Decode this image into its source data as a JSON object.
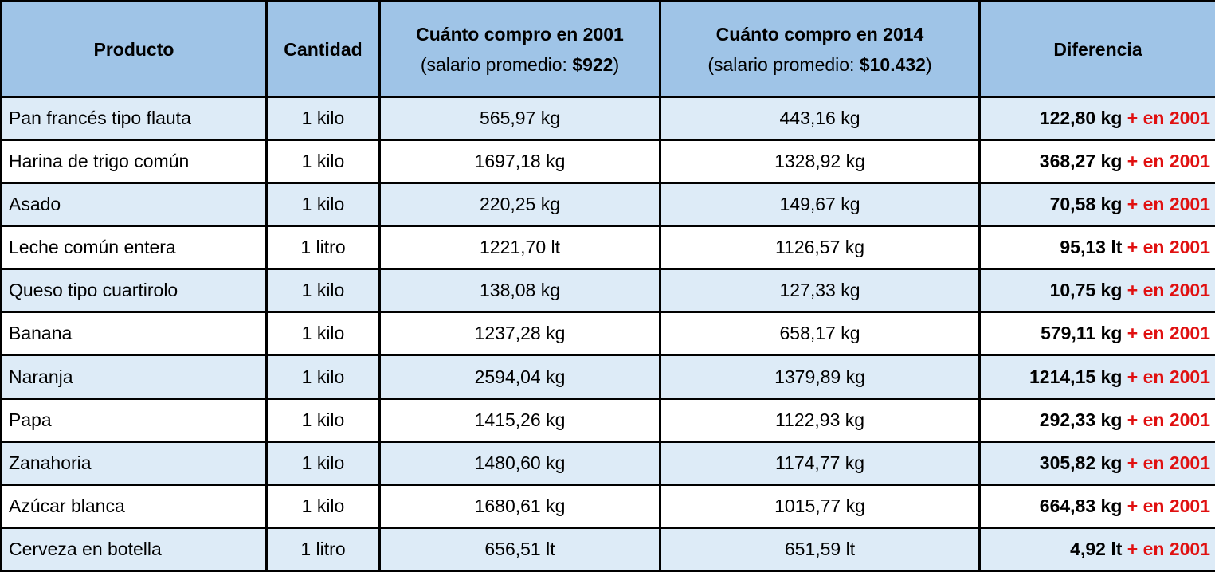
{
  "header": [
    {
      "title": "Producto"
    },
    {
      "title": "Cantidad"
    },
    {
      "title": "Cuánto compro en 2001",
      "note_prefix": "(salario promedio: ",
      "note_value": "$922",
      "note_suffix": ")"
    },
    {
      "title": "Cuánto compro en 2014",
      "note_prefix": "(salario promedio: ",
      "note_value": "$10.432",
      "note_suffix": ")"
    },
    {
      "title": "Diferencia"
    }
  ],
  "rows": [
    [
      "Pan francés tipo flauta",
      "1 kilo",
      "565,97 kg",
      "443,16 kg",
      {
        "amount": "122,80 kg",
        "note": "+ en 2001"
      }
    ],
    [
      "Harina de trigo común",
      "1 kilo",
      "1697,18 kg",
      "1328,92 kg",
      {
        "amount": "368,27 kg",
        "note": "+ en 2001"
      }
    ],
    [
      "Asado",
      "1 kilo",
      "220,25 kg",
      "149,67 kg",
      {
        "amount": "70,58 kg",
        "note": "+ en 2001"
      }
    ],
    [
      "Leche común entera",
      "1 litro",
      "1221,70 lt",
      "1126,57 kg",
      {
        "amount": "95,13 lt",
        "note": "+ en 2001"
      }
    ],
    [
      "Queso tipo cuartirolo",
      "1 kilo",
      "138,08 kg",
      "127,33 kg",
      {
        "amount": "10,75 kg",
        "note": "+ en 2001"
      }
    ],
    [
      "Banana",
      "1 kilo",
      "1237,28 kg",
      "658,17 kg",
      {
        "amount": "579,11 kg",
        "note": "+ en 2001"
      }
    ],
    [
      "Naranja",
      "1 kilo",
      "2594,04 kg",
      "1379,89 kg",
      {
        "amount": "1214,15 kg",
        "note": "+ en 2001"
      }
    ],
    [
      "Papa",
      "1 kilo",
      "1415,26 kg",
      "1122,93 kg",
      {
        "amount": "292,33 kg",
        "note": "+ en 2001"
      }
    ],
    [
      "Zanahoria",
      "1 kilo",
      "1480,60 kg",
      "1174,77 kg",
      {
        "amount": "305,82 kg",
        "note": "+ en 2001"
      }
    ],
    [
      "Azúcar blanca",
      "1 kilo",
      "1680,61 kg",
      "1015,77 kg",
      {
        "amount": "664,83 kg",
        "note": "+ en 2001"
      }
    ],
    [
      "Cerveza en botella",
      "1 litro",
      "656,51 lt",
      "651,59 lt",
      {
        "amount": "4,92 lt",
        "note": "+ en 2001"
      }
    ]
  ]
}
